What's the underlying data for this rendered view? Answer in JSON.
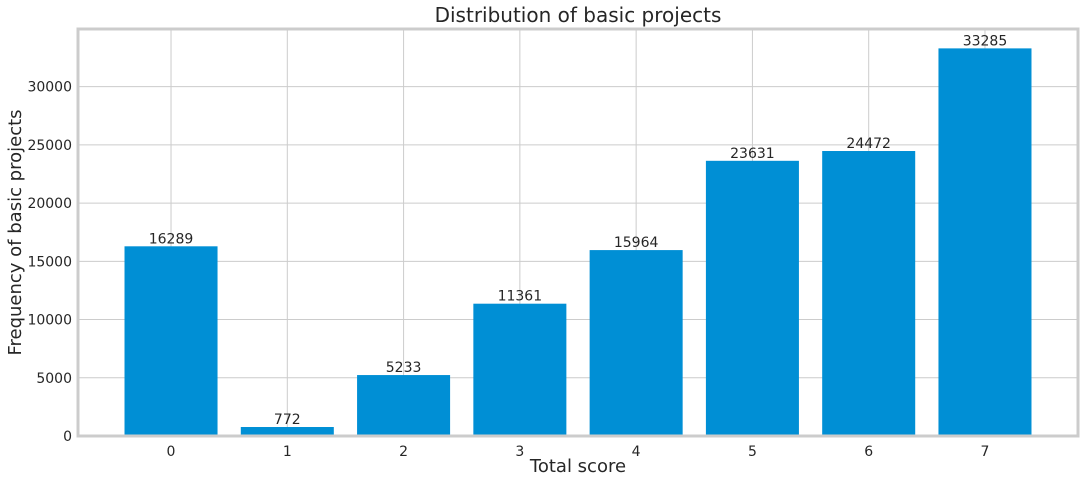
{
  "chart_data": {
    "type": "bar",
    "title": "Distribution of basic projects",
    "xlabel": "Total score",
    "ylabel": "Frequency of basic projects",
    "categories": [
      "0",
      "1",
      "2",
      "3",
      "4",
      "5",
      "6",
      "7"
    ],
    "values": [
      16289,
      772,
      5233,
      11361,
      15964,
      23631,
      24472,
      33285
    ],
    "data_labels": [
      "16289",
      "772",
      "5233",
      "11361",
      "15964",
      "23631",
      "24472",
      "33285"
    ],
    "yticks": [
      0,
      5000,
      10000,
      15000,
      20000,
      25000,
      30000
    ],
    "ytick_labels": [
      "0",
      "5000",
      "10000",
      "15000",
      "20000",
      "25000",
      "30000"
    ],
    "ylim": [
      0,
      34949
    ],
    "xlim": [
      -0.8,
      7.8
    ],
    "grid": true,
    "bar_color": "#008fd5",
    "grid_color": "#cccccc",
    "frame_color": "#cccccc"
  }
}
